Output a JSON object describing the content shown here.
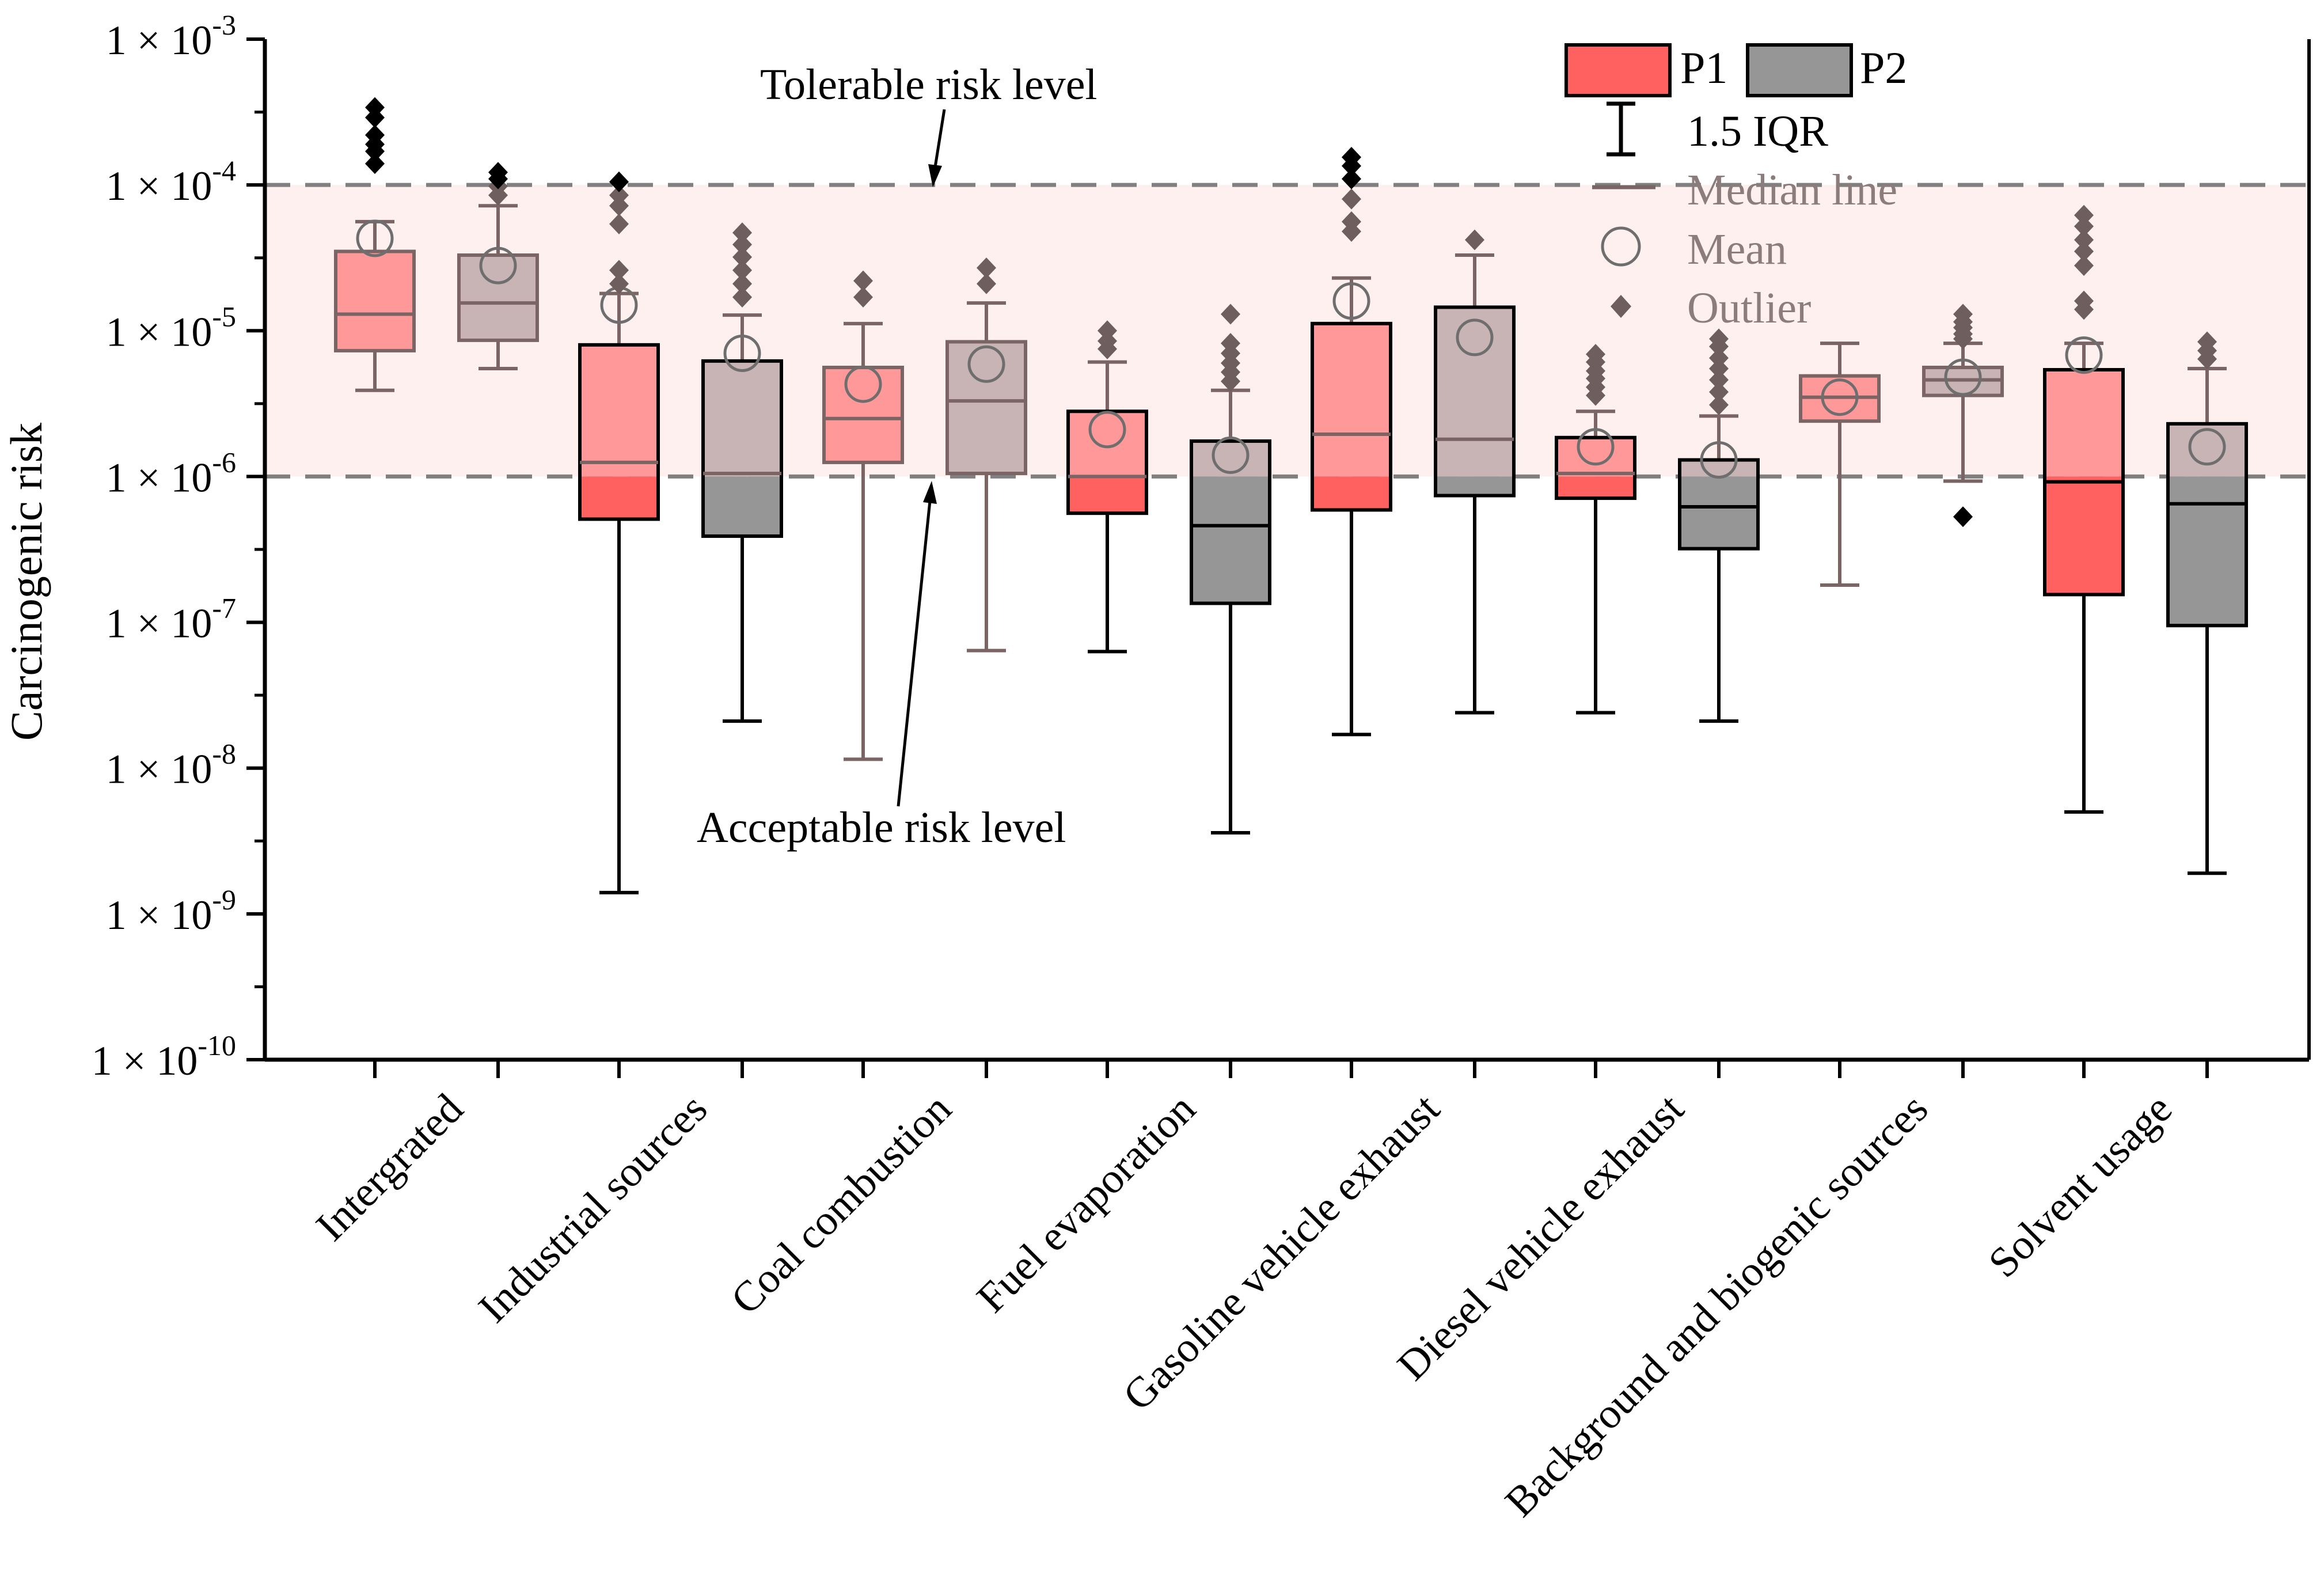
{
  "chart_data": {
    "type": "box",
    "ylabel": "Carcinogenic risk",
    "yscale": "log",
    "ylim": [
      1e-10,
      0.001
    ],
    "y_ticks": [
      {
        "value": 0.001,
        "base": "1 × 10",
        "exp": "-3"
      },
      {
        "value": 0.0001,
        "base": "1 × 10",
        "exp": "-4"
      },
      {
        "value": 1e-05,
        "base": "1 × 10",
        "exp": "-5"
      },
      {
        "value": 1e-06,
        "base": "1 × 10",
        "exp": "-6"
      },
      {
        "value": 1e-07,
        "base": "1 × 10",
        "exp": "-7"
      },
      {
        "value": 1e-08,
        "base": "1 × 10",
        "exp": "-8"
      },
      {
        "value": 1e-09,
        "base": "1 × 10",
        "exp": "-9"
      },
      {
        "value": 1e-10,
        "base": "1 × 10",
        "exp": "-10"
      }
    ],
    "categories": [
      "Intergrated",
      "Industrial sources",
      "Coal combustion",
      "Fuel evaporation",
      "Gasoline vehicle exhaust",
      "Diesel vehicle exhaust",
      "Background and biogenic sources",
      "Solvent usage"
    ],
    "series": [
      {
        "name": "P1",
        "color": "#ff6161",
        "boxes": [
          {
            "whisker_low": 3.9e-06,
            "q1": 7.3e-06,
            "median": 1.3e-05,
            "q3": 3.5e-05,
            "whisker_high": 5.6e-05,
            "mean": 4.3e-05,
            "outliers": [
              0.00014,
              0.00017,
              0.00019,
              0.00022,
              0.00029,
              0.00034
            ]
          },
          {
            "whisker_low": 1.4e-09,
            "q1": 5.1e-07,
            "median": 1.25e-06,
            "q3": 8e-06,
            "whisker_high": 1.8e-05,
            "mean": 1.5e-05,
            "outliers": [
              2.1e-05,
              2.6e-05,
              5.4e-05,
              7.2e-05,
              8.5e-05,
              0.000105
            ]
          },
          {
            "whisker_low": 1.15e-08,
            "q1": 1.25e-06,
            "median": 2.5e-06,
            "q3": 5.6e-06,
            "whisker_high": 1.12e-05,
            "mean": 4.3e-06,
            "outliers": [
              1.7e-05,
              2.2e-05
            ]
          },
          {
            "whisker_low": 6.3e-08,
            "q1": 5.6e-07,
            "median": 1e-06,
            "q3": 2.8e-06,
            "whisker_high": 6.1e-06,
            "mean": 2.1e-06,
            "outliers": [
              7.5e-06,
              8.5e-06,
              1e-05
            ]
          },
          {
            "whisker_low": 1.7e-08,
            "q1": 5.9e-07,
            "median": 1.95e-06,
            "q3": 1.12e-05,
            "whisker_high": 2.3e-05,
            "mean": 1.6e-05,
            "outliers": [
              4.8e-05,
              5.6e-05,
              8e-05,
              0.00011,
              0.000135,
              0.000155
            ]
          },
          {
            "whisker_low": 2.4e-08,
            "q1": 7.1e-07,
            "median": 1.05e-06,
            "q3": 1.85e-06,
            "whisker_high": 2.8e-06,
            "mean": 1.6e-06,
            "outliers": [
              3.6e-06,
              4.1e-06,
              4.7e-06,
              5.3e-06,
              6.1e-06,
              6.9e-06
            ]
          },
          {
            "whisker_low": 1.8e-07,
            "q1": 2.4e-06,
            "median": 3.5e-06,
            "q3": 4.9e-06,
            "whisker_high": 8.2e-06,
            "mean": 3.5e-06,
            "outliers": []
          },
          {
            "whisker_low": 5e-09,
            "q1": 1.55e-07,
            "median": 9.2e-07,
            "q3": 5.4e-06,
            "whisker_high": 8.2e-06,
            "mean": 6.8e-06,
            "outliers": [
              1.4e-05,
              1.6e-05,
              2.8e-05,
              3.5e-05,
              4.2e-05,
              5.2e-05,
              6.2e-05
            ]
          }
        ]
      },
      {
        "name": "P2",
        "color": "#969696",
        "boxes": [
          {
            "whisker_low": 5.5e-06,
            "q1": 8.6e-06,
            "median": 1.55e-05,
            "q3": 3.3e-05,
            "whisker_high": 7.2e-05,
            "mean": 2.8e-05,
            "outliers": [
              8.5e-05,
              9.8e-05,
              0.00011,
              0.000122
            ]
          },
          {
            "whisker_low": 2.1e-08,
            "q1": 3.9e-07,
            "median": 1.05e-06,
            "q3": 6.2e-06,
            "whisker_high": 1.28e-05,
            "mean": 7e-06,
            "outliers": [
              1.7e-05,
              2.1e-05,
              2.6e-05,
              3.2e-05,
              3.9e-05,
              4.7e-05
            ]
          },
          {
            "whisker_low": 6.4e-08,
            "q1": 1.05e-06,
            "median": 3.3e-06,
            "q3": 8.4e-06,
            "whisker_high": 1.55e-05,
            "mean": 5.9e-06,
            "outliers": [
              2.1e-05,
              2.7e-05
            ]
          },
          {
            "whisker_low": 3.6e-09,
            "q1": 1.35e-07,
            "median": 4.6e-07,
            "q3": 1.75e-06,
            "whisker_high": 3.9e-06,
            "mean": 1.4e-06,
            "outliers": [
              4.5e-06,
              5.2e-06,
              6e-06,
              7e-06,
              8.2e-06,
              1.3e-05
            ]
          },
          {
            "whisker_low": 2.4e-08,
            "q1": 7.4e-07,
            "median": 1.8e-06,
            "q3": 1.45e-05,
            "whisker_high": 3.3e-05,
            "mean": 9e-06,
            "outliers": [
              4.2e-05
            ]
          },
          {
            "whisker_low": 2.1e-08,
            "q1": 3.2e-07,
            "median": 6.2e-07,
            "q3": 1.3e-06,
            "whisker_high": 2.6e-06,
            "mean": 1.3e-06,
            "outliers": [
              3.1e-06,
              3.8e-06,
              4.6e-06,
              5.5e-06,
              6.5e-06,
              7.8e-06,
              8.8e-06
            ]
          },
          {
            "whisker_low": 9.3e-07,
            "q1": 3.6e-06,
            "median": 4.6e-06,
            "q3": 5.6e-06,
            "whisker_high": 8.2e-06,
            "mean": 4.8e-06,
            "outliers": [
              5.3e-07,
              8.8e-06,
              9.5e-06,
              1.05e-05,
              1.15e-05,
              1.3e-05
            ]
          },
          {
            "whisker_low": 1.9e-09,
            "q1": 9.5e-08,
            "median": 6.5e-07,
            "q3": 2.3e-06,
            "whisker_high": 5.5e-06,
            "mean": 1.6e-06,
            "outliers": [
              6.4e-06,
              7.3e-06,
              8.4e-06
            ]
          }
        ]
      }
    ],
    "reference_lines": [
      {
        "name": "tolerable",
        "value": 0.0001,
        "label": "Tolerable risk level"
      },
      {
        "name": "acceptable",
        "value": 1e-06,
        "label": "Acceptable risk level"
      }
    ],
    "shaded_band": {
      "from": 1e-06,
      "to": 0.0001,
      "color": "#fff0f0"
    },
    "legend": {
      "position": "top-right",
      "p1": "P1",
      "p2": "P2",
      "iqr": "1.5 IQR",
      "median": "Median line",
      "mean": "Mean",
      "outlier": "Outlier"
    }
  }
}
